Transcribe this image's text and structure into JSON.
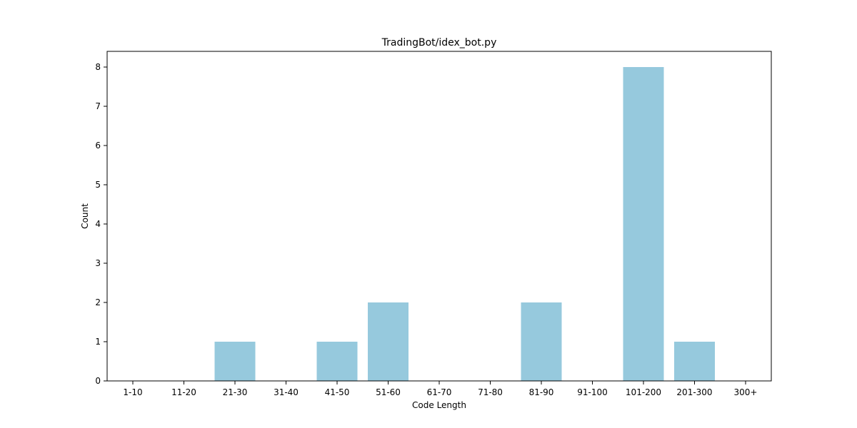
{
  "chart_data": {
    "type": "bar",
    "title": "TradingBot/idex_bot.py",
    "xlabel": "Code Length",
    "ylabel": "Count",
    "categories": [
      "1-10",
      "11-20",
      "21-30",
      "31-40",
      "41-50",
      "51-60",
      "61-70",
      "71-80",
      "81-90",
      "91-100",
      "101-200",
      "201-300",
      "300+"
    ],
    "values": [
      0,
      0,
      1,
      0,
      1,
      2,
      0,
      0,
      2,
      0,
      8,
      1,
      0
    ],
    "ylim": [
      0,
      8.4
    ],
    "yticks": [
      0,
      1,
      2,
      3,
      4,
      5,
      6,
      7,
      8
    ],
    "bar_color": "#96c9dd",
    "grid": false,
    "legend": "none"
  }
}
